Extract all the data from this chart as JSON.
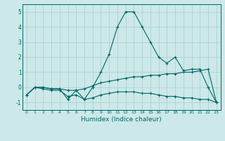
{
  "xlabel": "Humidex (Indice chaleur)",
  "ylabel": "",
  "bg_color": "#cce8e8",
  "grid_color": "#aacccc",
  "line_color": "#006666",
  "x": [
    0,
    1,
    2,
    3,
    4,
    5,
    6,
    7,
    8,
    9,
    10,
    11,
    12,
    13,
    14,
    15,
    16,
    17,
    18,
    19,
    20,
    21,
    22,
    23
  ],
  "line1": [
    -0.5,
    0.0,
    0.0,
    -0.1,
    -0.1,
    -0.8,
    -0.2,
    -0.8,
    0.0,
    1.0,
    2.2,
    4.0,
    5.0,
    5.0,
    4.0,
    3.0,
    2.0,
    1.6,
    2.0,
    1.1,
    1.2,
    1.2,
    0.0,
    -1.0
  ],
  "line2": [
    -0.5,
    0.0,
    0.0,
    -0.1,
    -0.1,
    -0.2,
    -0.2,
    -0.1,
    0.1,
    0.3,
    0.4,
    0.5,
    0.6,
    0.7,
    0.7,
    0.8,
    0.8,
    0.9,
    0.9,
    1.0,
    1.0,
    1.1,
    1.2,
    -1.0
  ],
  "line3": [
    -0.5,
    0.0,
    -0.1,
    -0.2,
    -0.2,
    -0.6,
    -0.5,
    -0.8,
    -0.7,
    -0.5,
    -0.4,
    -0.3,
    -0.3,
    -0.3,
    -0.4,
    -0.4,
    -0.5,
    -0.6,
    -0.6,
    -0.7,
    -0.7,
    -0.8,
    -0.8,
    -1.0
  ],
  "ylim": [
    -1.5,
    5.5
  ],
  "yticks": [
    -1,
    0,
    1,
    2,
    3,
    4,
    5
  ],
  "xticks": [
    0,
    1,
    2,
    3,
    4,
    5,
    6,
    7,
    8,
    9,
    10,
    11,
    12,
    13,
    14,
    15,
    16,
    17,
    18,
    19,
    20,
    21,
    22,
    23
  ],
  "marker": "+"
}
